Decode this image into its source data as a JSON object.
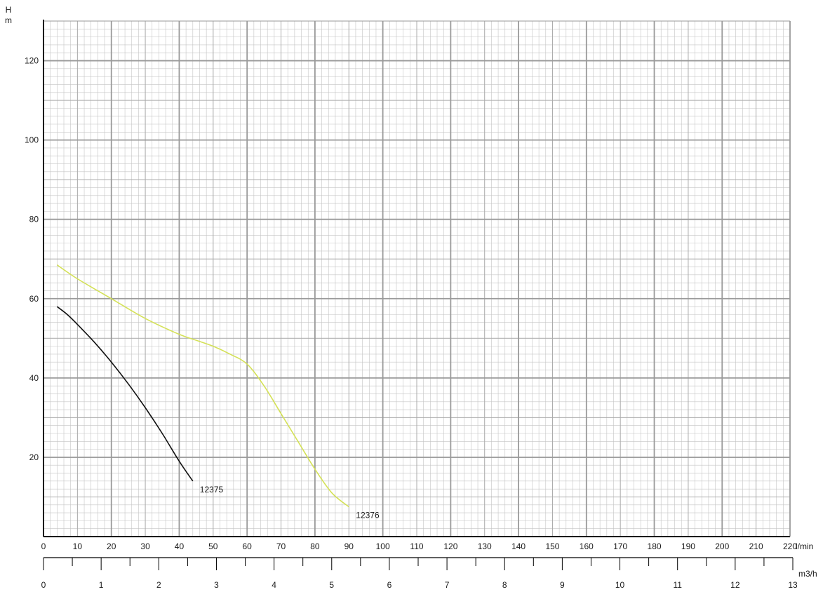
{
  "chart_data": {
    "type": "line",
    "ylabel": "H",
    "yunit": "m",
    "xunit": "l/min",
    "x2unit": "m3/h",
    "xlim": [
      0,
      220
    ],
    "ylim": [
      0,
      130
    ],
    "x2lim": [
      0,
      13
    ],
    "grid": true,
    "xticks": [
      "0",
      "10",
      "20",
      "30",
      "40",
      "50",
      "60",
      "70",
      "80",
      "90",
      "100",
      "110",
      "120",
      "130",
      "140",
      "150",
      "160",
      "170",
      "180",
      "190",
      "200",
      "210",
      "220"
    ],
    "yticks": [
      "20",
      "40",
      "60",
      "80",
      "100",
      "120"
    ],
    "x2ticks": [
      "0",
      "1",
      "2",
      "3",
      "4",
      "5",
      "6",
      "7",
      "8",
      "9",
      "10",
      "11",
      "12",
      "13"
    ],
    "series": [
      {
        "name": "12375",
        "color": "#111111",
        "x": [
          4,
          7,
          10,
          15,
          20,
          25,
          30,
          35,
          40,
          44
        ],
        "y": [
          58,
          56,
          53.5,
          49,
          44,
          38.5,
          32.5,
          26,
          19,
          14
        ]
      },
      {
        "name": "12376",
        "color": "#d4e157",
        "x": [
          4,
          10,
          20,
          30,
          40,
          45,
          50,
          55,
          60,
          65,
          70,
          75,
          80,
          85,
          90
        ],
        "y": [
          68.5,
          65,
          60,
          55,
          51,
          49.5,
          48,
          46,
          43.5,
          38,
          31,
          24,
          17,
          11,
          7.5
        ]
      }
    ]
  }
}
